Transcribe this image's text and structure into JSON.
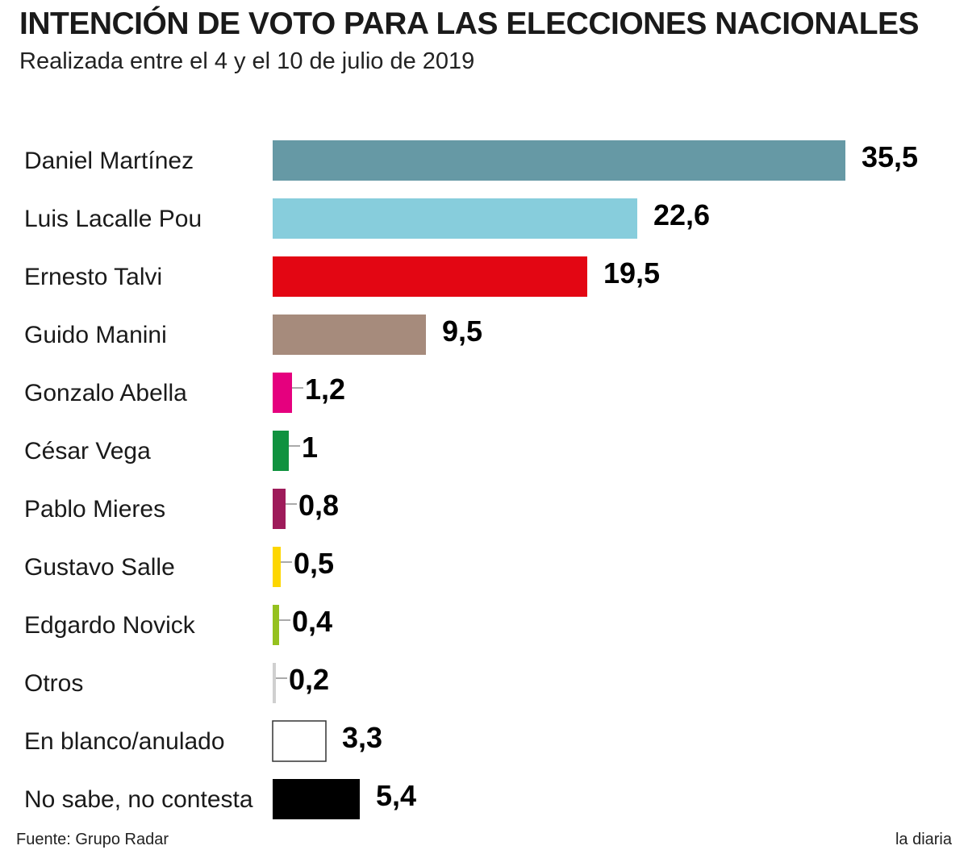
{
  "header": {
    "title": "INTENCIÓN DE VOTO PARA LAS ELECCIONES NACIONALES",
    "subtitle": "Realizada entre el 4 y el 10 de julio de 2019"
  },
  "footer": {
    "source": "Fuente: Grupo Radar",
    "brand": "la diaria"
  },
  "chart_data": {
    "type": "bar",
    "orientation": "horizontal",
    "title": "INTENCIÓN DE VOTO PARA LAS ELECCIONES NACIONALES",
    "subtitle": "Realizada entre el 4 y el 10 de julio de 2019",
    "categories": [
      "Daniel Martínez",
      "Luis Lacalle Pou",
      "Ernesto Talvi",
      "Guido Manini",
      "Gonzalo Abella",
      "César Vega",
      "Pablo Mieres",
      "Gustavo Salle",
      "Edgardo Novick",
      "Otros",
      "En blanco/anulado",
      "No sabe, no contesta"
    ],
    "values": [
      35.5,
      22.6,
      19.5,
      9.5,
      1.2,
      1,
      0.8,
      0.5,
      0.4,
      0.2,
      3.3,
      5.4
    ],
    "value_labels": [
      "35,5",
      "22,6",
      "19,5",
      "9,5",
      "1,2",
      "1",
      "0,8",
      "0,5",
      "0,4",
      "0,2",
      "3,3",
      "5,4"
    ],
    "colors": [
      "#6699a5",
      "#87cddc",
      "#e30613",
      "#a68b7c",
      "#e5007e",
      "#10923f",
      "#9e1b5a",
      "#fdd600",
      "#95c11f",
      "#d0d0d0",
      "#ffffff",
      "#000000"
    ],
    "xlim": [
      0,
      35.5
    ],
    "grid": false,
    "legend": "none"
  }
}
